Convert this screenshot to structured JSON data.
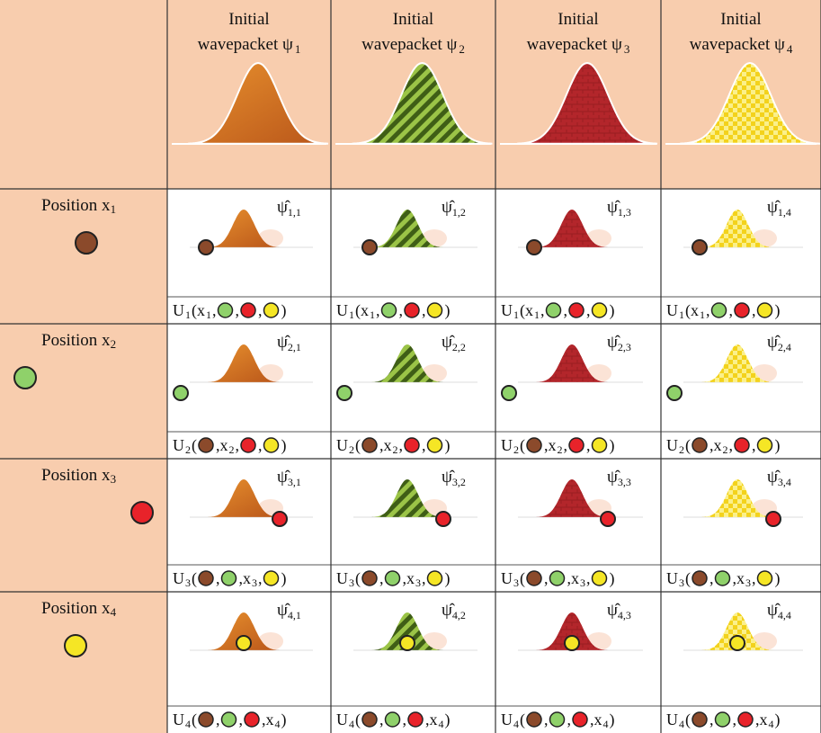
{
  "header": {
    "columns": [
      {
        "line1": "Initial",
        "line2": "wavepacket ψ",
        "sub": "1"
      },
      {
        "line1": "Initial",
        "line2": "wavepacket ψ",
        "sub": "2"
      },
      {
        "line1": "Initial",
        "line2": "wavepacket ψ",
        "sub": "3"
      },
      {
        "line1": "Initial",
        "line2": "wavepacket ψ",
        "sub": "4"
      }
    ]
  },
  "colors": {
    "brown": "#8b4a2b",
    "green": "#8fd16a",
    "red": "#e8232a",
    "yellow": "#f5e625"
  },
  "rows": [
    {
      "label": "Position x",
      "sub": "1",
      "dot": "brown",
      "caption": [
        "U",
        {
          "sub": "1"
        },
        "(x",
        {
          "sub": "1"
        },
        ",",
        {
          "dot": "green"
        },
        ",",
        {
          "dot": "red"
        },
        ",",
        {
          "dot": "yellow"
        },
        ")"
      ],
      "cells": [
        {
          "psi": "ψ̂",
          "sub": "1,1"
        },
        {
          "psi": "ψ̂",
          "sub": "1,2"
        },
        {
          "psi": "ψ̂",
          "sub": "1,3"
        },
        {
          "psi": "ψ̂",
          "sub": "1,4"
        }
      ]
    },
    {
      "label": "Position x",
      "sub": "2",
      "dot": "green",
      "caption": [
        "U",
        {
          "sub": "2"
        },
        "(",
        {
          "dot": "brown"
        },
        ",x",
        {
          "sub": "2"
        },
        ",",
        {
          "dot": "red"
        },
        ",",
        {
          "dot": "yellow"
        },
        ")"
      ],
      "cells": [
        {
          "psi": "ψ̂",
          "sub": "2,1"
        },
        {
          "psi": "ψ̂",
          "sub": "2,2"
        },
        {
          "psi": "ψ̂",
          "sub": "2,3"
        },
        {
          "psi": "ψ̂",
          "sub": "2,4"
        }
      ]
    },
    {
      "label": "Position x",
      "sub": "3",
      "dot": "red",
      "caption": [
        "U",
        {
          "sub": "3"
        },
        "(",
        {
          "dot": "brown"
        },
        ",",
        {
          "dot": "green"
        },
        ",x",
        {
          "sub": "3"
        },
        ",",
        {
          "dot": "yellow"
        },
        ")"
      ],
      "cells": [
        {
          "psi": "ψ̂",
          "sub": "3,1"
        },
        {
          "psi": "ψ̂",
          "sub": "3,2"
        },
        {
          "psi": "ψ̂",
          "sub": "3,3"
        },
        {
          "psi": "ψ̂",
          "sub": "3,4"
        }
      ]
    },
    {
      "label": "Position x",
      "sub": "4",
      "dot": "yellow",
      "caption": [
        "U",
        {
          "sub": "4"
        },
        "(",
        {
          "dot": "brown"
        },
        ",",
        {
          "dot": "green"
        },
        ",",
        {
          "dot": "red"
        },
        ",x",
        {
          "sub": "4"
        },
        ")"
      ],
      "cells": [
        {
          "psi": "ψ̂",
          "sub": "4,1"
        },
        {
          "psi": "ψ̂",
          "sub": "4,2"
        },
        {
          "psi": "ψ̂",
          "sub": "4,3"
        },
        {
          "psi": "ψ̂",
          "sub": "4,4"
        }
      ]
    }
  ]
}
